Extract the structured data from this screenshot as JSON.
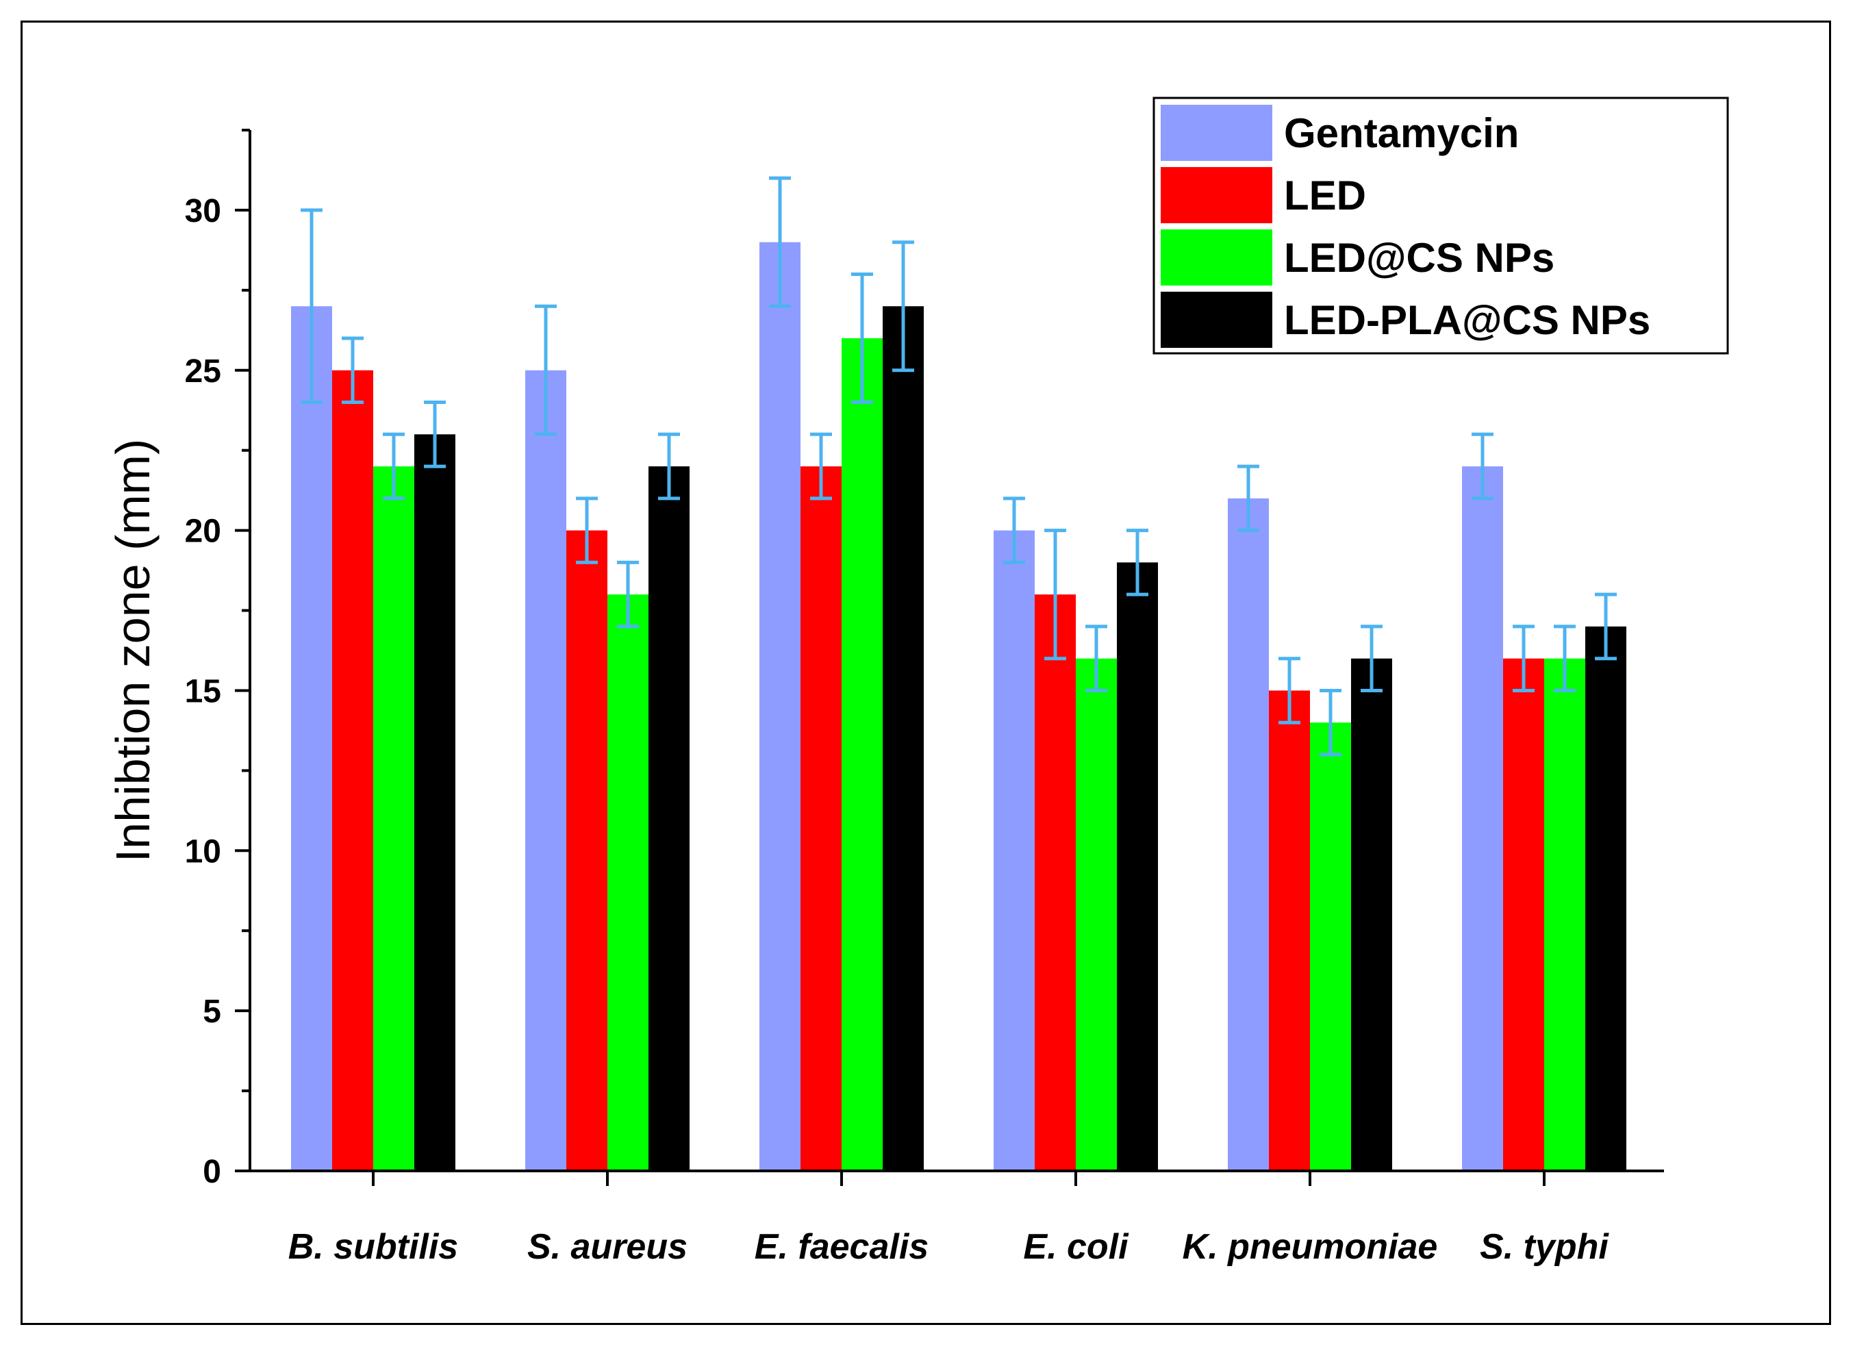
{
  "chart_data": {
    "type": "bar",
    "title": "",
    "xlabel": "",
    "ylabel": "Inhibtion zone (mm)",
    "ylim": [
      0,
      32.5
    ],
    "yticks": [
      0,
      5,
      10,
      15,
      20,
      25,
      30
    ],
    "categories": [
      "B. subtilis",
      "S. aureus",
      "E. faecalis",
      "E. coli",
      "K. pneumoniae",
      "S. typhi"
    ],
    "series": [
      {
        "name": "Gentamycin",
        "color": "#8F9CFF",
        "values": [
          27,
          25,
          29,
          20,
          21,
          22
        ],
        "errors": [
          3,
          2,
          2,
          1,
          1,
          1
        ]
      },
      {
        "name": "LED",
        "color": "#FF0000",
        "values": [
          25,
          20,
          22,
          18,
          15,
          16
        ],
        "errors": [
          1,
          1,
          1,
          2,
          1,
          1
        ]
      },
      {
        "name": "LED@CS NPs",
        "color": "#00FF00",
        "values": [
          22,
          18,
          26,
          16,
          14,
          16
        ],
        "errors": [
          1,
          1,
          2,
          1,
          1,
          1
        ]
      },
      {
        "name": "LED-PLA@CS NPs",
        "color": "#000000",
        "values": [
          23,
          22,
          27,
          19,
          16,
          17
        ],
        "errors": [
          1,
          1,
          2,
          1,
          1,
          1
        ]
      }
    ],
    "error_bar_color": "#4DB3F0",
    "legend_position": "top-right"
  }
}
